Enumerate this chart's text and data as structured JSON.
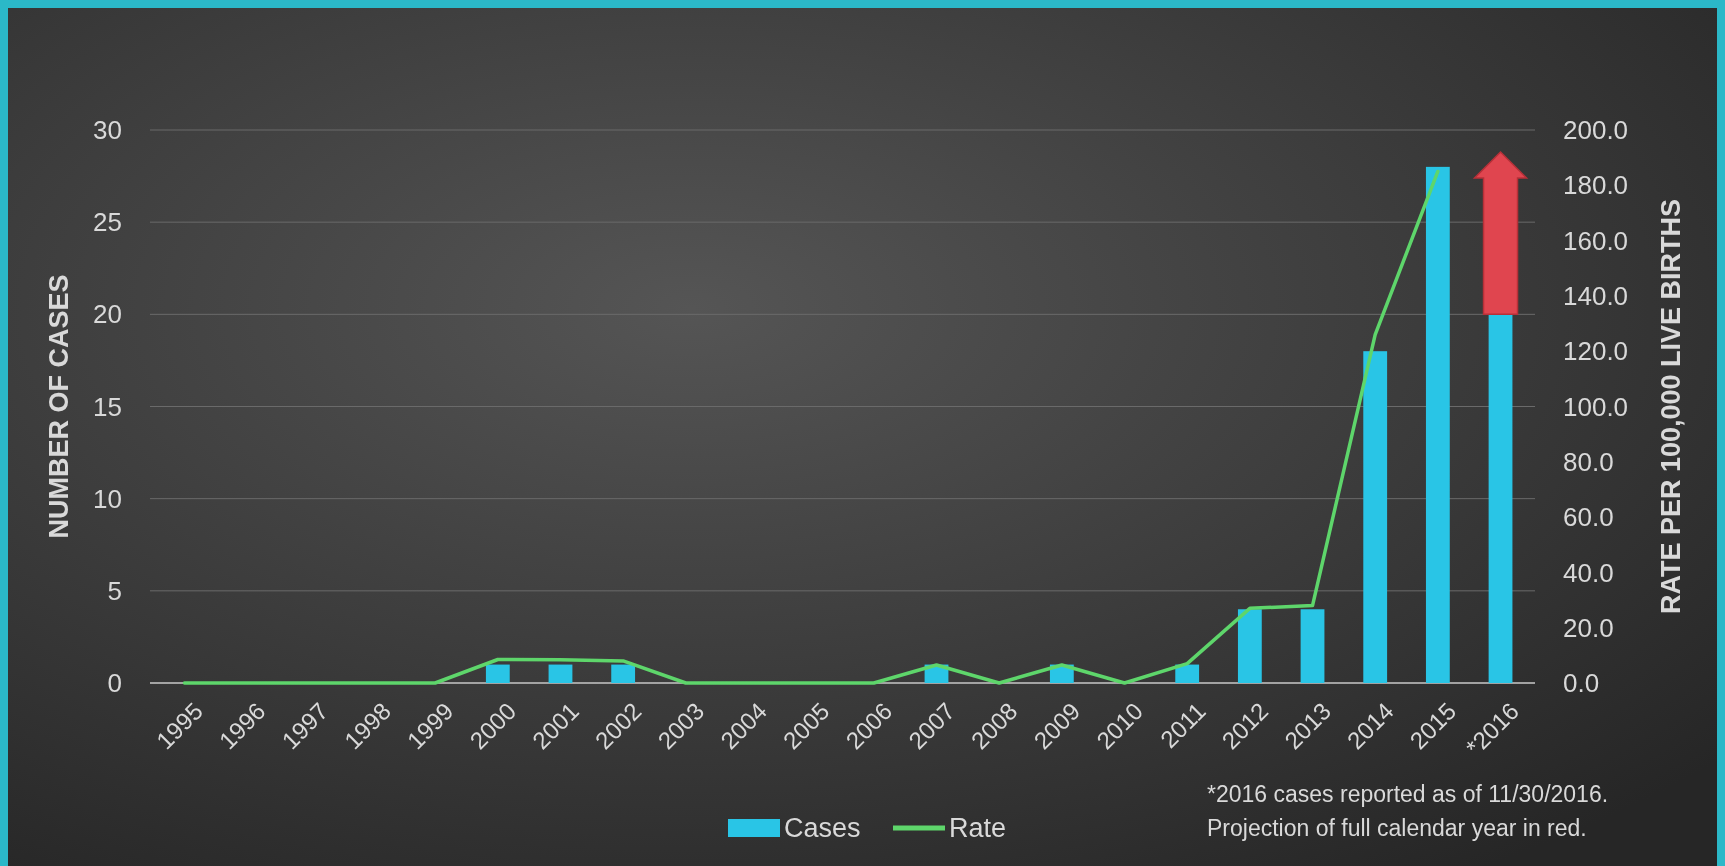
{
  "chart_data": {
    "type": "bar",
    "categories": [
      "1995",
      "1996",
      "1997",
      "1998",
      "1999",
      "2000",
      "2001",
      "2002",
      "2003",
      "2004",
      "2005",
      "2006",
      "2007",
      "2008",
      "2009",
      "2010",
      "2011",
      "2012",
      "2013",
      "2014",
      "2015",
      "*2016"
    ],
    "series": [
      {
        "name": "Cases",
        "color": "#29c5e6",
        "values": [
          0,
          0,
          0,
          0,
          0,
          1,
          1,
          1,
          0,
          0,
          0,
          0,
          1,
          0,
          1,
          0,
          1,
          4,
          4,
          18,
          28,
          20
        ]
      },
      {
        "name": "Rate",
        "type": "line",
        "axis": "y2",
        "color": "#5ed66b",
        "values": [
          0,
          0,
          0,
          0,
          0,
          8.5,
          8.4,
          8,
          0,
          0,
          0,
          0,
          6.5,
          0,
          6.5,
          0,
          7,
          27,
          28,
          126,
          185,
          null
        ]
      }
    ],
    "ylabel": "NUMBER OF CASES",
    "y2label": "RATE PER 100,000 LIVE BIRTHS",
    "ylim": [
      0,
      30
    ],
    "yticks": [
      0,
      5,
      10,
      15,
      20,
      25,
      30
    ],
    "y2lim": [
      0,
      200
    ],
    "y2ticks": [
      {
        "value": 0,
        "label": "0.0"
      },
      {
        "value": 20,
        "label": "20.0"
      },
      {
        "value": 40,
        "label": "40.0"
      },
      {
        "value": 60,
        "label": "60.0"
      },
      {
        "value": 80,
        "label": "80.0"
      },
      {
        "value": 100,
        "label": "100.0"
      },
      {
        "value": 120,
        "label": "120.0"
      },
      {
        "value": 140,
        "label": "140.0"
      },
      {
        "value": 160,
        "label": "160.0"
      },
      {
        "value": 180,
        "label": "180.0"
      },
      {
        "value": 200,
        "label": "200.0"
      }
    ],
    "grid": "y",
    "legend": "bottom",
    "marker": "none",
    "annotations": [
      "*2016 cases reported as of 11/30/2016.",
      "Projection of full calendar year in red."
    ]
  }
}
